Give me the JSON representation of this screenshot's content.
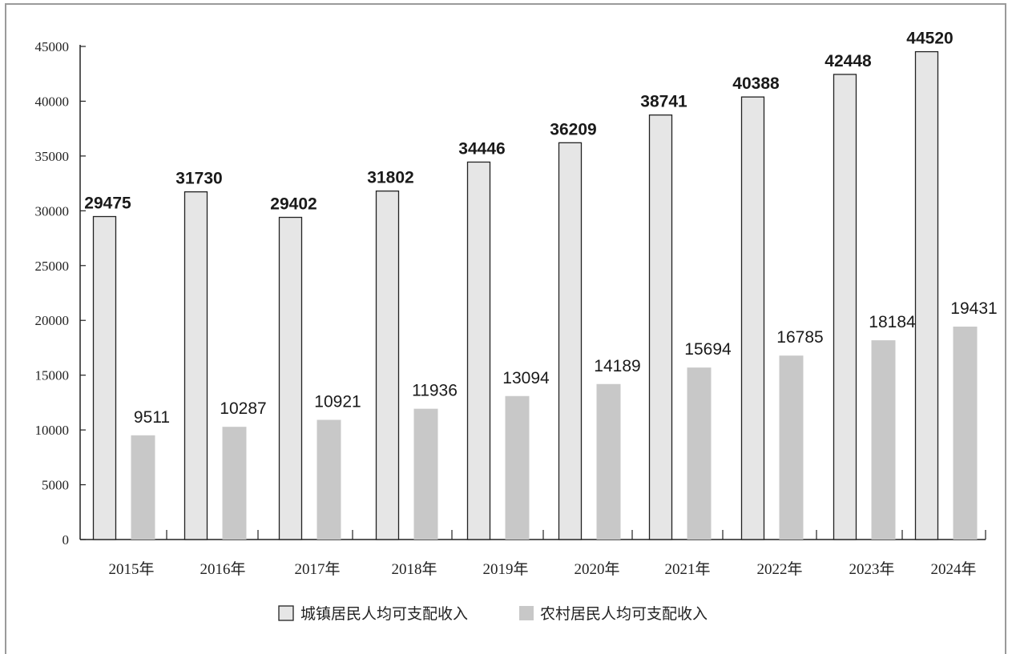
{
  "chart_data": {
    "type": "bar",
    "categories": [
      "2015年",
      "2016年",
      "2017年",
      "2018年",
      "2019年",
      "2020年",
      "2021年",
      "2022年",
      "2023年",
      "2024年"
    ],
    "series": [
      {
        "name": "城镇居民人均可支配收入",
        "values": [
          29475,
          31730,
          29402,
          31802,
          34446,
          36209,
          38741,
          40388,
          42448,
          44520
        ],
        "color": "#e6e6e6",
        "border": "#222222"
      },
      {
        "name": "农村居民人均可支配收入",
        "values": [
          9511,
          10287,
          10921,
          11936,
          13094,
          14189,
          15694,
          16785,
          18184,
          19431
        ],
        "color": "#c8c8c8",
        "border": "none"
      }
    ],
    "yticks": [
      0,
      5000,
      10000,
      15000,
      20000,
      25000,
      30000,
      35000,
      40000,
      45000
    ],
    "ylim": [
      0,
      45000
    ],
    "legend_position": "bottom",
    "grid": false
  }
}
